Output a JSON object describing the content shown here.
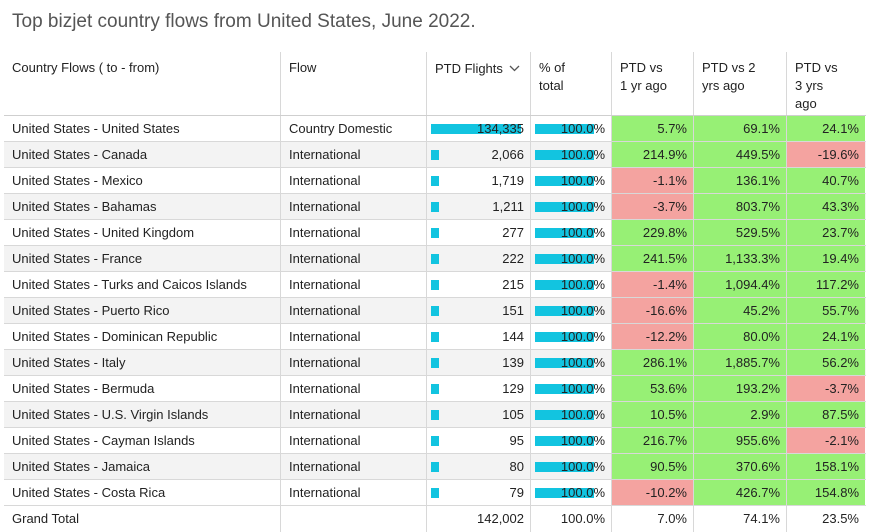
{
  "title": "Top bizjet country flows from United States, June 2022.",
  "colors": {
    "bar": "#12c4e0",
    "positive": "#97f075",
    "negative": "#f4a3a0"
  },
  "headers": {
    "country": "Country Flows ( to - from)",
    "flow": "Flow",
    "ptd": "PTD Flights",
    "pct_1": "% of",
    "pct_2": "total",
    "y1_1": "PTD vs",
    "y1_2": "1 yr ago",
    "y2_1": "PTD vs 2",
    "y2_2": "yrs ago",
    "y3_1": "PTD vs",
    "y3_2": "3 yrs",
    "y3_3": "ago"
  },
  "sort_icon": "chevron-down-icon",
  "rows": [
    {
      "country": "United States - United States",
      "flow": "Country Domestic",
      "ptd": "134,335",
      "ptd_value": 134335,
      "pct": "100.0%",
      "y1": "5.7%",
      "y2": "69.1%",
      "y3": "24.1%"
    },
    {
      "country": "United States - Canada",
      "flow": "International",
      "ptd": "2,066",
      "ptd_value": 2066,
      "pct": "100.0%",
      "y1": "214.9%",
      "y2": "449.5%",
      "y3": "-19.6%"
    },
    {
      "country": "United States - Mexico",
      "flow": "International",
      "ptd": "1,719",
      "ptd_value": 1719,
      "pct": "100.0%",
      "y1": "-1.1%",
      "y2": "136.1%",
      "y3": "40.7%"
    },
    {
      "country": "United States - Bahamas",
      "flow": "International",
      "ptd": "1,211",
      "ptd_value": 1211,
      "pct": "100.0%",
      "y1": "-3.7%",
      "y2": "803.7%",
      "y3": "43.3%"
    },
    {
      "country": "United States - United Kingdom",
      "flow": "International",
      "ptd": "277",
      "ptd_value": 277,
      "pct": "100.0%",
      "y1": "229.8%",
      "y2": "529.5%",
      "y3": "23.7%"
    },
    {
      "country": "United States - France",
      "flow": "International",
      "ptd": "222",
      "ptd_value": 222,
      "pct": "100.0%",
      "y1": "241.5%",
      "y2": "1,133.3%",
      "y3": "19.4%"
    },
    {
      "country": "United States - Turks and Caicos Islands",
      "flow": "International",
      "ptd": "215",
      "ptd_value": 215,
      "pct": "100.0%",
      "y1": "-1.4%",
      "y2": "1,094.4%",
      "y3": "117.2%"
    },
    {
      "country": "United States - Puerto Rico",
      "flow": "International",
      "ptd": "151",
      "ptd_value": 151,
      "pct": "100.0%",
      "y1": "-16.6%",
      "y2": "45.2%",
      "y3": "55.7%"
    },
    {
      "country": "United States - Dominican Republic",
      "flow": "International",
      "ptd": "144",
      "ptd_value": 144,
      "pct": "100.0%",
      "y1": "-12.2%",
      "y2": "80.0%",
      "y3": "24.1%"
    },
    {
      "country": "United States - Italy",
      "flow": "International",
      "ptd": "139",
      "ptd_value": 139,
      "pct": "100.0%",
      "y1": "286.1%",
      "y2": "1,885.7%",
      "y3": "56.2%"
    },
    {
      "country": "United States - Bermuda",
      "flow": "International",
      "ptd": "129",
      "ptd_value": 129,
      "pct": "100.0%",
      "y1": "53.6%",
      "y2": "193.2%",
      "y3": "-3.7%"
    },
    {
      "country": "United States - U.S. Virgin Islands",
      "flow": "International",
      "ptd": "105",
      "ptd_value": 105,
      "pct": "100.0%",
      "y1": "10.5%",
      "y2": "2.9%",
      "y3": "87.5%"
    },
    {
      "country": "United States - Cayman Islands",
      "flow": "International",
      "ptd": "95",
      "ptd_value": 95,
      "pct": "100.0%",
      "y1": "216.7%",
      "y2": "955.6%",
      "y3": "-2.1%"
    },
    {
      "country": "United States - Jamaica",
      "flow": "International",
      "ptd": "80",
      "ptd_value": 80,
      "pct": "100.0%",
      "y1": "90.5%",
      "y2": "370.6%",
      "y3": "158.1%"
    },
    {
      "country": "United States - Costa Rica",
      "flow": "International",
      "ptd": "79",
      "ptd_value": 79,
      "pct": "100.0%",
      "y1": "-10.2%",
      "y2": "426.7%",
      "y3": "154.8%"
    }
  ],
  "total": {
    "label": "Grand Total",
    "ptd": "142,002",
    "pct": "100.0%",
    "y1": "7.0%",
    "y2": "74.1%",
    "y3": "23.5%"
  }
}
